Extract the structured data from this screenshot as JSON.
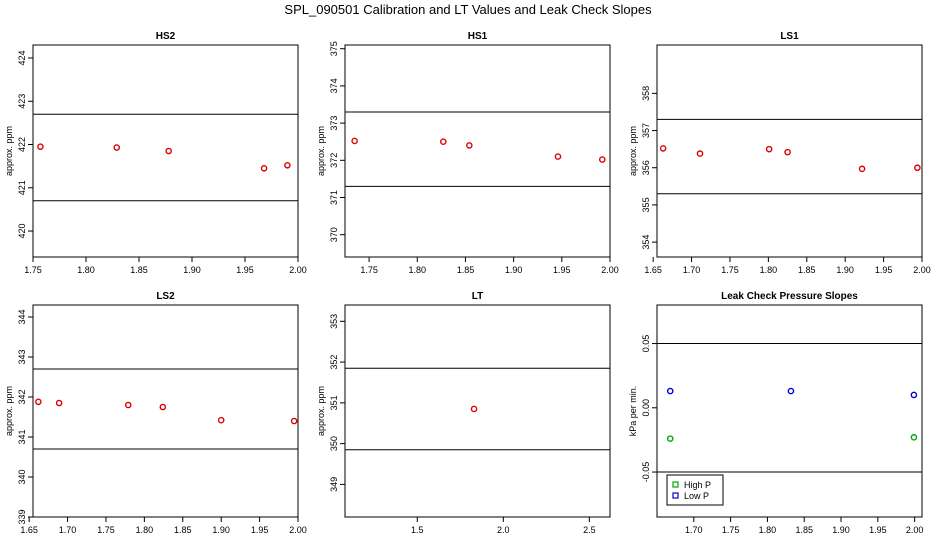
{
  "figure": {
    "title": "SPL_090501  Calibration and LT Values and Leak Check Slopes"
  },
  "chart_data": [
    {
      "type": "scatter",
      "title": "HS2",
      "ylabel": "approx. ppm",
      "xlim": [
        1.75,
        2.0
      ],
      "ylim": [
        419.4,
        424.3
      ],
      "xticks": [
        "1.75",
        "1.80",
        "1.85",
        "1.90",
        "1.95",
        "2.00"
      ],
      "yticks": [
        "420",
        "421",
        "422",
        "423",
        "424"
      ],
      "hlines": [
        420.7,
        422.7
      ],
      "series": [
        {
          "color": "#dd0000",
          "marker": "circle",
          "x": [
            1.757,
            1.829,
            1.878,
            1.968,
            1.99
          ],
          "y": [
            421.95,
            421.93,
            421.85,
            421.45,
            421.52
          ]
        }
      ]
    },
    {
      "type": "scatter",
      "title": "HS1",
      "ylabel": "approx. ppm",
      "xlim": [
        1.725,
        2.0
      ],
      "ylim": [
        369.4,
        375.1
      ],
      "xticks": [
        "1.75",
        "1.80",
        "1.85",
        "1.90",
        "1.95",
        "2.00"
      ],
      "yticks": [
        "370",
        "371",
        "372",
        "373",
        "374",
        "375"
      ],
      "hlines": [
        371.3,
        373.3
      ],
      "series": [
        {
          "color": "#dd0000",
          "marker": "circle",
          "x": [
            1.735,
            1.827,
            1.854,
            1.946,
            1.992
          ],
          "y": [
            372.52,
            372.5,
            372.4,
            372.1,
            372.02
          ]
        }
      ]
    },
    {
      "type": "scatter",
      "title": "LS1",
      "ylabel": "approx. ppm",
      "xlim": [
        1.655,
        2.0
      ],
      "ylim": [
        353.6,
        359.3
      ],
      "xticks": [
        "1.65",
        "1.70",
        "1.75",
        "1.80",
        "1.85",
        "1.90",
        "1.95",
        "2.00"
      ],
      "yticks": [
        "354",
        "355",
        "356",
        "357",
        "358"
      ],
      "hlines": [
        355.3,
        357.3
      ],
      "series": [
        {
          "color": "#dd0000",
          "marker": "circle",
          "x": [
            1.663,
            1.711,
            1.801,
            1.825,
            1.922,
            1.994
          ],
          "y": [
            356.52,
            356.38,
            356.5,
            356.42,
            355.97,
            356.0
          ]
        }
      ]
    },
    {
      "type": "scatter",
      "title": "LS2",
      "ylabel": "approx. ppm",
      "xlim": [
        1.655,
        2.0
      ],
      "ylim": [
        339.0,
        344.3
      ],
      "xticks": [
        "1.65",
        "1.70",
        "1.75",
        "1.80",
        "1.85",
        "1.90",
        "1.95",
        "2.00"
      ],
      "yticks": [
        "339",
        "340",
        "341",
        "342",
        "343",
        "344"
      ],
      "hlines": [
        340.7,
        342.7
      ],
      "series": [
        {
          "color": "#dd0000",
          "marker": "circle",
          "x": [
            1.662,
            1.689,
            1.779,
            1.824,
            1.9,
            1.995
          ],
          "y": [
            341.88,
            341.85,
            341.8,
            341.75,
            341.42,
            341.4
          ]
        }
      ]
    },
    {
      "type": "scatter",
      "title": "LT",
      "ylabel": "approx. ppm",
      "xlim": [
        1.08,
        2.62
      ],
      "ylim": [
        348.2,
        353.4
      ],
      "xticks": [
        "1.5",
        "2.0",
        "2.5"
      ],
      "yticks": [
        "349",
        "350",
        "351",
        "352",
        "353"
      ],
      "hlines": [
        349.85,
        351.85
      ],
      "series": [
        {
          "color": "#dd0000",
          "marker": "circle",
          "x": [
            1.83
          ],
          "y": [
            350.85
          ]
        }
      ]
    },
    {
      "type": "scatter",
      "title": "Leak Check Pressure Slopes",
      "ylabel": "kPa per min.",
      "xlim": [
        1.65,
        2.01
      ],
      "ylim": [
        -0.085,
        0.08
      ],
      "xticks": [
        "1.70",
        "1.75",
        "1.80",
        "1.85",
        "1.90",
        "1.95",
        "2.00"
      ],
      "yticks": [
        "-0.05",
        "0.00",
        "0.05"
      ],
      "hlines": [
        0.05,
        -0.05
      ],
      "legend": {
        "position": "bottom-left",
        "entries": [
          "High P",
          "Low P"
        ]
      },
      "series": [
        {
          "name": "High P",
          "color": "#00aa00",
          "marker": "circle",
          "x": [
            1.668,
            1.999
          ],
          "y": [
            -0.024,
            -0.023
          ]
        },
        {
          "name": "Low P",
          "color": "#0000cc",
          "marker": "circle",
          "x": [
            1.668,
            1.832,
            1.999
          ],
          "y": [
            0.013,
            0.013,
            0.01
          ]
        }
      ]
    }
  ]
}
